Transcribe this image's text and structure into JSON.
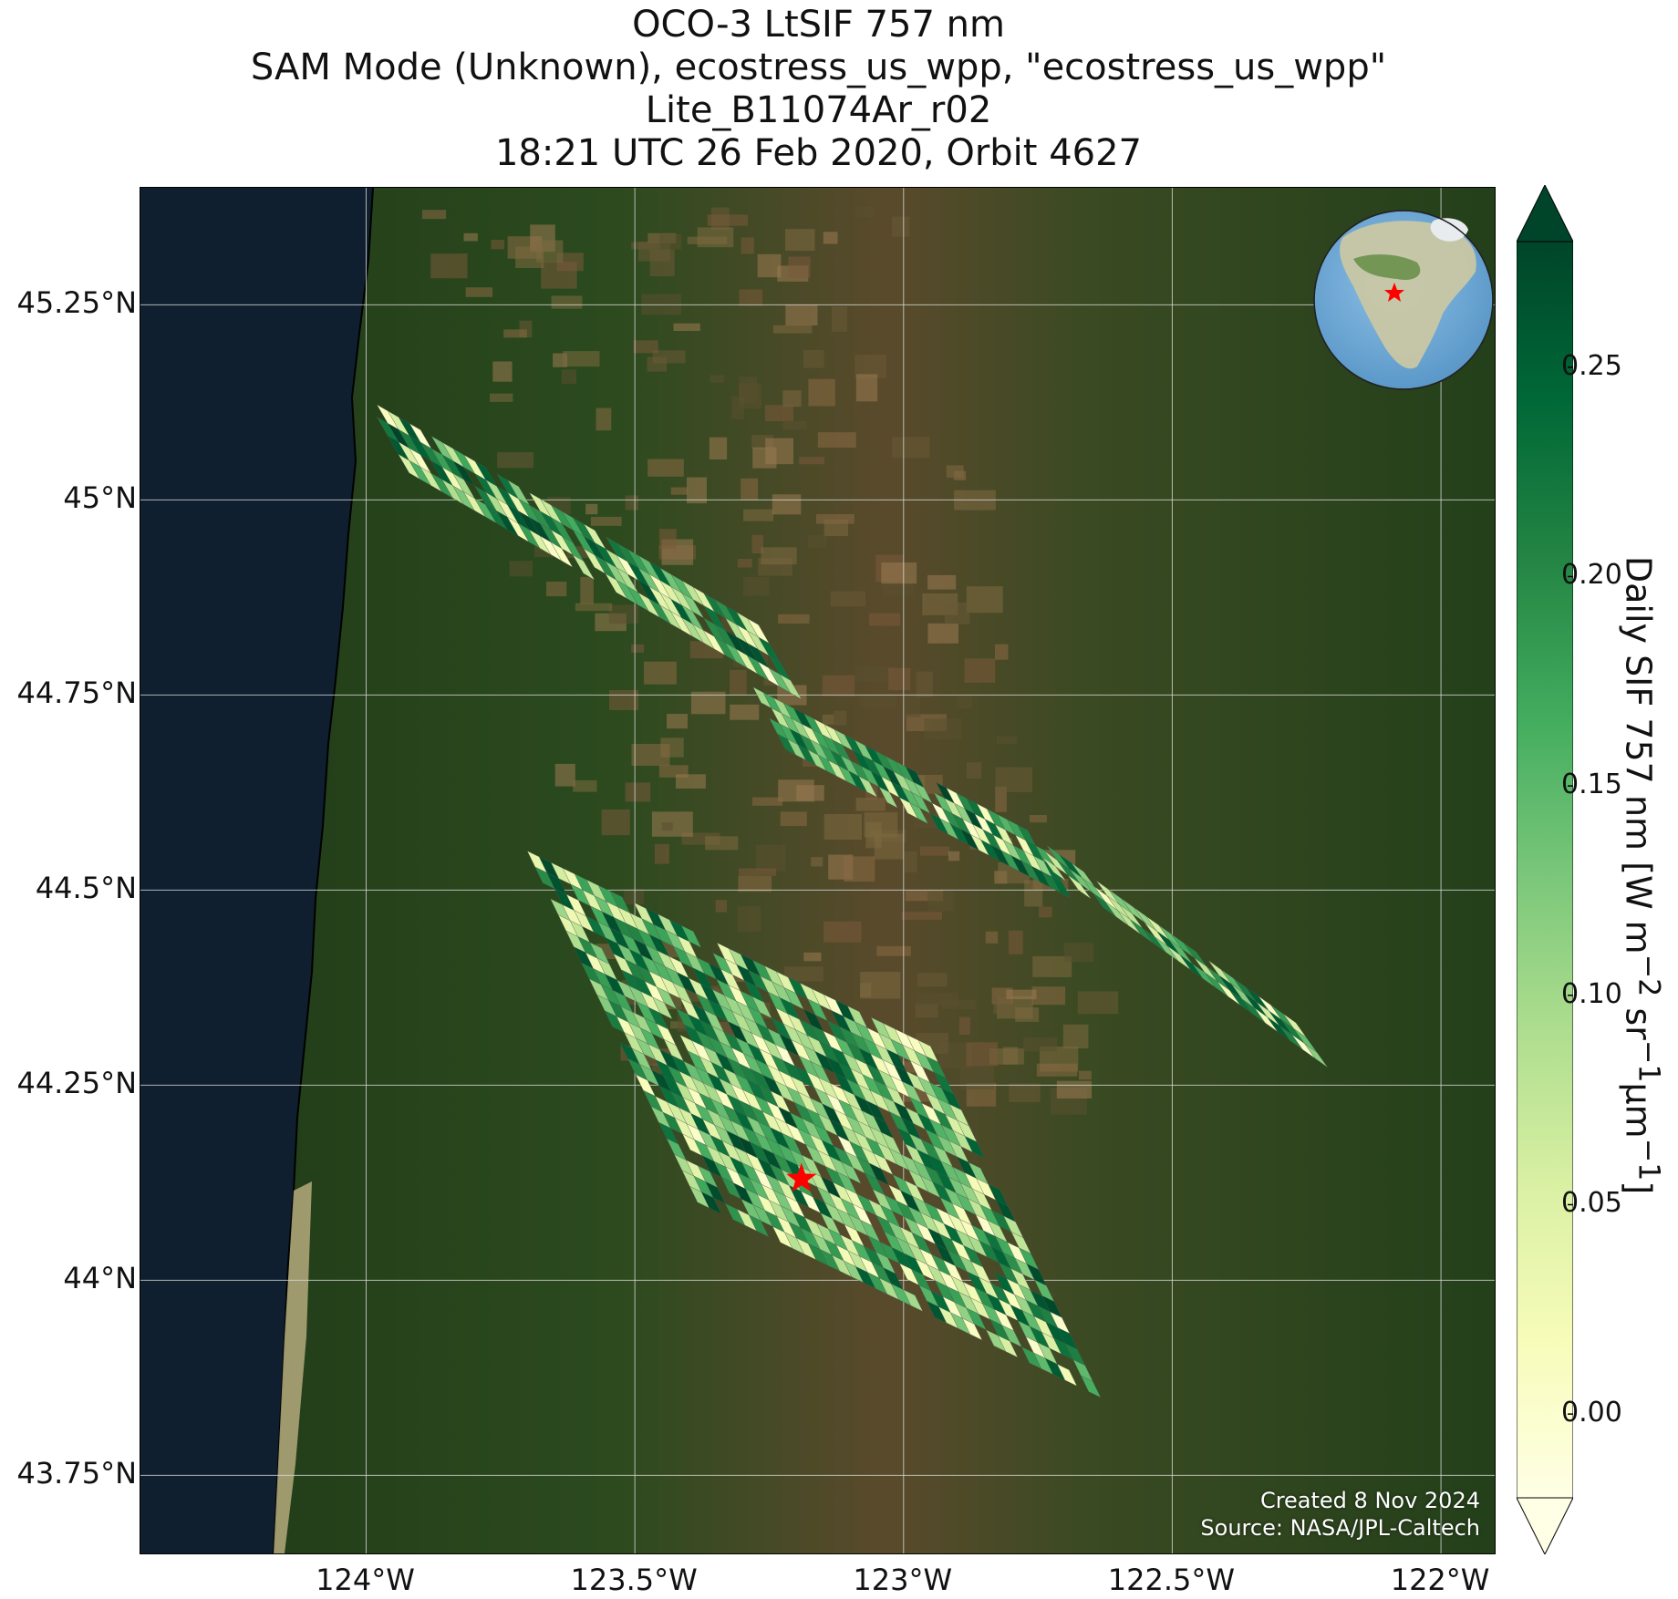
{
  "title": {
    "line1": "OCO-3 LtSIF 757 nm",
    "line2": "SAM Mode (Unknown), ecostress_us_wpp, \"ecostress_us_wpp\"",
    "line3": "Lite_B11074Ar_r02",
    "line4": "18:21 UTC 26 Feb 2020, Orbit 4627"
  },
  "map": {
    "basemap": "satellite imagery (Oregon: coast, Coast Range, Willamette Valley, Cascades)",
    "lon_range": [
      -124.42,
      -121.9
    ],
    "lat_range": [
      43.65,
      45.4
    ],
    "target_marker": {
      "lon": -123.19,
      "lat": 44.13,
      "color": "#ff0000",
      "icon": "star-icon"
    },
    "inset_globe": {
      "center_lon": -100,
      "center_lat": 45,
      "marker_color": "#ff0000"
    },
    "grid": true
  },
  "axes": {
    "lat_ticks": [
      "45.25°N",
      "45°N",
      "44.75°N",
      "44.5°N",
      "44.25°N",
      "44°N",
      "43.75°N"
    ],
    "lat_values": [
      45.25,
      45.0,
      44.75,
      44.5,
      44.25,
      44.0,
      43.75
    ],
    "lon_ticks": [
      "124°W",
      "123.5°W",
      "123°W",
      "122.5°W",
      "122°W"
    ],
    "lon_values": [
      -124.0,
      -123.5,
      -123.0,
      -122.5,
      -122.0
    ]
  },
  "colorbar": {
    "label": "Daily SIF 757 nm [W m",
    "label_sup1": "−2",
    "label_mid": " sr",
    "label_sup2": "−1",
    "label_mid2": "μm",
    "label_sup3": "−1",
    "label_end": "]",
    "range": [
      -0.02,
      0.28
    ],
    "ticks": [
      "0.00",
      "0.05",
      "0.10",
      "0.15",
      "0.20",
      "0.25"
    ],
    "tick_values": [
      0.0,
      0.05,
      0.1,
      0.15,
      0.2,
      0.25
    ],
    "extend": "both",
    "colormap": "YlGn",
    "colors": [
      "#ffffe5",
      "#f7fcb9",
      "#d9f0a3",
      "#addd8e",
      "#78c679",
      "#41ab5d",
      "#238443",
      "#006837",
      "#004529"
    ]
  },
  "credits": {
    "created": "Created 8 Nov 2024",
    "source": "Source: NASA/JPL-Caltech"
  },
  "chart_data": {
    "type": "heatmap",
    "variable": "Daily SIF 757 nm",
    "swaths": [
      {
        "name_hint": "north strip",
        "start": [
          -124.0,
          45.13
        ],
        "end": [
          -123.27,
          44.84
        ],
        "width_deg": 0.11,
        "rows": 4,
        "cols": 36
      },
      {
        "name_hint": "middle strip",
        "start": [
          -123.28,
          44.76
        ],
        "end": [
          -122.75,
          44.57
        ],
        "width_deg": 0.09,
        "rows": 4,
        "cols": 28
      },
      {
        "name_hint": "east strip",
        "start": [
          -122.78,
          44.58
        ],
        "end": [
          -122.27,
          44.33
        ],
        "width_deg": 0.07,
        "rows": 3,
        "cols": 22
      },
      {
        "name_hint": "main block",
        "start": [
          -123.7,
          44.55
        ],
        "end": [
          -122.95,
          44.3
        ],
        "width_deg": 0.5,
        "rows": 22,
        "cols": 34
      }
    ],
    "value_range": [
      0.0,
      0.28
    ]
  }
}
